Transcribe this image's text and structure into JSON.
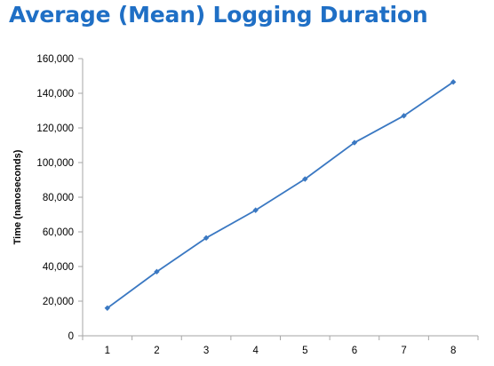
{
  "chart_data": {
    "type": "line",
    "title": "Average (Mean) Logging Duration",
    "xlabel": "",
    "ylabel": "Time (nanoseconds)",
    "categories": [
      "1",
      "2",
      "3",
      "4",
      "5",
      "6",
      "7",
      "8"
    ],
    "series": [
      {
        "values": [
          16000,
          37000,
          56500,
          72500,
          90500,
          111500,
          127000,
          146500
        ]
      }
    ],
    "ylim": [
      0,
      160000
    ],
    "yticks": [
      "0",
      "20,000",
      "40,000",
      "60,000",
      "80,000",
      "100,000",
      "120,000",
      "140,000",
      "160,000"
    ],
    "grid": false,
    "legend": "none",
    "colors": {
      "title": "#1f6fc5",
      "line": "#3a78c2",
      "axis": "#a6a6a6"
    }
  }
}
